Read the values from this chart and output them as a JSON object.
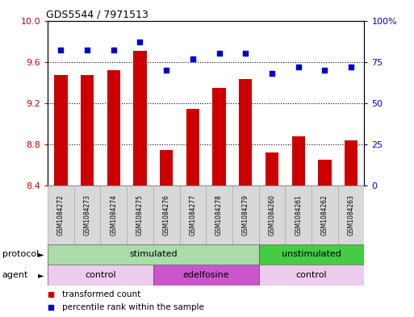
{
  "title": "GDS5544 / 7971513",
  "samples": [
    "GSM1084272",
    "GSM1084273",
    "GSM1084274",
    "GSM1084275",
    "GSM1084276",
    "GSM1084277",
    "GSM1084278",
    "GSM1084279",
    "GSM1084260",
    "GSM1084261",
    "GSM1084262",
    "GSM1084263"
  ],
  "transformed_counts": [
    9.47,
    9.47,
    9.52,
    9.71,
    8.74,
    9.14,
    9.35,
    9.43,
    8.72,
    8.88,
    8.65,
    8.84
  ],
  "percentile_ranks": [
    82,
    82,
    82,
    87,
    70,
    77,
    80,
    80,
    68,
    72,
    70,
    72
  ],
  "ylim_left": [
    8.4,
    10.0
  ],
  "ylim_right": [
    0,
    100
  ],
  "yticks_left": [
    8.4,
    8.8,
    9.2,
    9.6,
    10.0
  ],
  "yticks_right": [
    0,
    25,
    50,
    75,
    100
  ],
  "ytick_labels_right": [
    "0",
    "25",
    "50",
    "75",
    "100%"
  ],
  "bar_color": "#cc0000",
  "dot_color": "#0000cc",
  "protocol_groups": [
    {
      "label": "stimulated",
      "start": 0,
      "end": 7,
      "color": "#aaddaa"
    },
    {
      "label": "unstimulated",
      "start": 8,
      "end": 11,
      "color": "#44cc44"
    }
  ],
  "agent_groups": [
    {
      "label": "control",
      "start": 0,
      "end": 3,
      "color": "#eeccee"
    },
    {
      "label": "edelfosine",
      "start": 4,
      "end": 7,
      "color": "#cc55cc"
    },
    {
      "label": "control",
      "start": 8,
      "end": 11,
      "color": "#eeccee"
    }
  ],
  "legend_items": [
    {
      "label": "transformed count",
      "color": "#cc0000"
    },
    {
      "label": "percentile rank within the sample",
      "color": "#0000cc"
    }
  ],
  "bar_width": 0.5,
  "background_color": "#ffffff",
  "protocol_label": "protocol",
  "agent_label": "agent"
}
